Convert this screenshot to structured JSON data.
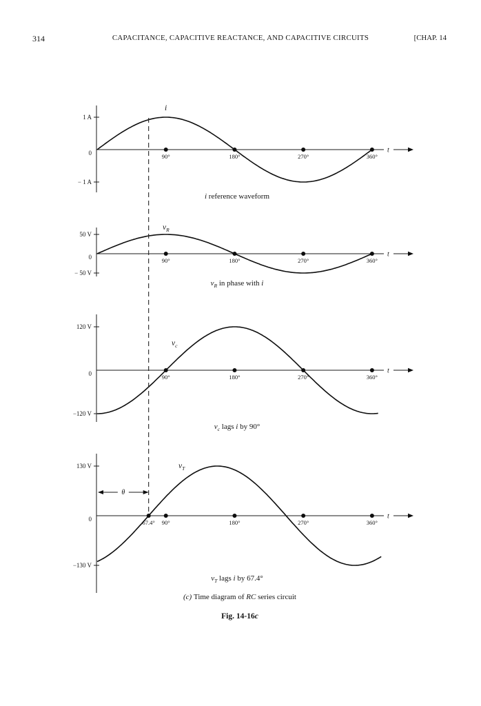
{
  "page": {
    "number": "314",
    "running_head": "CAPACITANCE, CAPACITIVE REACTANCE, AND CAPACITIVE CIRCUITS",
    "chapter_ref": "[CHAP. 14",
    "figure_caption_segments": [
      {
        "t": "(c) ",
        "s": "it"
      },
      {
        "t": "Time diagram of ",
        "s": "p"
      },
      {
        "t": "RC",
        "s": "it"
      },
      {
        "t": " series circuit",
        "s": "p"
      }
    ],
    "figure_number_segments": [
      {
        "t": "Fig. 14-16",
        "s": "b"
      },
      {
        "t": "c",
        "s": "bi"
      }
    ]
  },
  "annotations": {
    "dashed_guide_deg": 67.4,
    "theta_symbol": "θ"
  },
  "chart_data": [
    {
      "id": "i",
      "type": "line",
      "waveform": "sine",
      "series_label": {
        "main": "i",
        "sub": ""
      },
      "peak": 1,
      "unit": "A",
      "phase_lag_deg": 0,
      "x_range_deg": [
        0,
        360
      ],
      "y_tick_labels": {
        "top": "1 A",
        "zero": "0",
        "bottom": "− 1 A"
      },
      "x_ticks": [
        {
          "deg": 90,
          "label": "90°",
          "dot": true
        },
        {
          "deg": 180,
          "label": "180°",
          "dot": true
        },
        {
          "deg": 270,
          "label": "270°",
          "dot": true
        },
        {
          "deg": 360,
          "label": "360°",
          "dot": true
        }
      ],
      "x_axis_label": "t",
      "caption_segments": [
        {
          "t": "i",
          "s": "it"
        },
        {
          "t": " reference waveform",
          "s": "p"
        }
      ]
    },
    {
      "id": "vR",
      "type": "line",
      "waveform": "sine",
      "series_label": {
        "main": "v",
        "sub": "R"
      },
      "peak": 50,
      "unit": "V",
      "phase_lag_deg": 0,
      "x_range_deg": [
        0,
        360
      ],
      "y_tick_labels": {
        "top": "50 V",
        "zero": "0",
        "bottom": "− 50 V"
      },
      "x_ticks": [
        {
          "deg": 90,
          "label": "90°",
          "dot": true
        },
        {
          "deg": 180,
          "label": "180°",
          "dot": true
        },
        {
          "deg": 270,
          "label": "270°",
          "dot": true
        },
        {
          "deg": 360,
          "label": "360°",
          "dot": true
        }
      ],
      "x_axis_label": "t",
      "caption_segments": [
        {
          "t": "v",
          "s": "it"
        },
        {
          "t": "R",
          "s": "sub"
        },
        {
          "t": " in phase with ",
          "s": "p"
        },
        {
          "t": "i",
          "s": "it"
        }
      ]
    },
    {
      "id": "vC",
      "type": "line",
      "waveform": "sine",
      "series_label": {
        "main": "v",
        "sub": "c"
      },
      "peak": 120,
      "unit": "V",
      "phase_lag_deg": 90,
      "x_range_deg": [
        0,
        360
      ],
      "y_tick_labels": {
        "top": "120 V",
        "zero": "0",
        "bottom": "−120 V"
      },
      "x_ticks": [
        {
          "deg": 90,
          "label": "90°",
          "dot": true
        },
        {
          "deg": 180,
          "label": "180°",
          "dot": true
        },
        {
          "deg": 270,
          "label": "270°",
          "dot": true
        },
        {
          "deg": 360,
          "label": "360°",
          "dot": true
        }
      ],
      "x_axis_label": "t",
      "caption_segments": [
        {
          "t": "v",
          "s": "it"
        },
        {
          "t": "c",
          "s": "sub"
        },
        {
          "t": " lags ",
          "s": "p"
        },
        {
          "t": "i",
          "s": "it"
        },
        {
          "t": " by 90°",
          "s": "p"
        }
      ]
    },
    {
      "id": "vT",
      "type": "line",
      "waveform": "sine",
      "series_label": {
        "main": "v",
        "sub": "T"
      },
      "peak": 130,
      "unit": "V",
      "phase_lag_deg": 67.4,
      "x_range_deg": [
        0,
        360
      ],
      "y_tick_labels": {
        "top": "130 V",
        "zero": "0",
        "bottom": "−130 V"
      },
      "x_ticks": [
        {
          "deg": 67.4,
          "label": "67.4°",
          "dot": true
        },
        {
          "deg": 90,
          "label": "90°",
          "dot": true
        },
        {
          "deg": 180,
          "label": "180°",
          "dot": true
        },
        {
          "deg": 270,
          "label": "270°",
          "dot": true
        },
        {
          "deg": 360,
          "label": "360°",
          "dot": true
        }
      ],
      "x_axis_label": "t",
      "theta": {
        "symbol": "θ",
        "from_deg": 0,
        "to_deg": 67.4
      },
      "caption_segments": [
        {
          "t": "v",
          "s": "it"
        },
        {
          "t": "T",
          "s": "sub"
        },
        {
          "t": " lags ",
          "s": "p"
        },
        {
          "t": "i",
          "s": "it"
        },
        {
          "t": " by 67.4°",
          "s": "p"
        }
      ]
    }
  ]
}
